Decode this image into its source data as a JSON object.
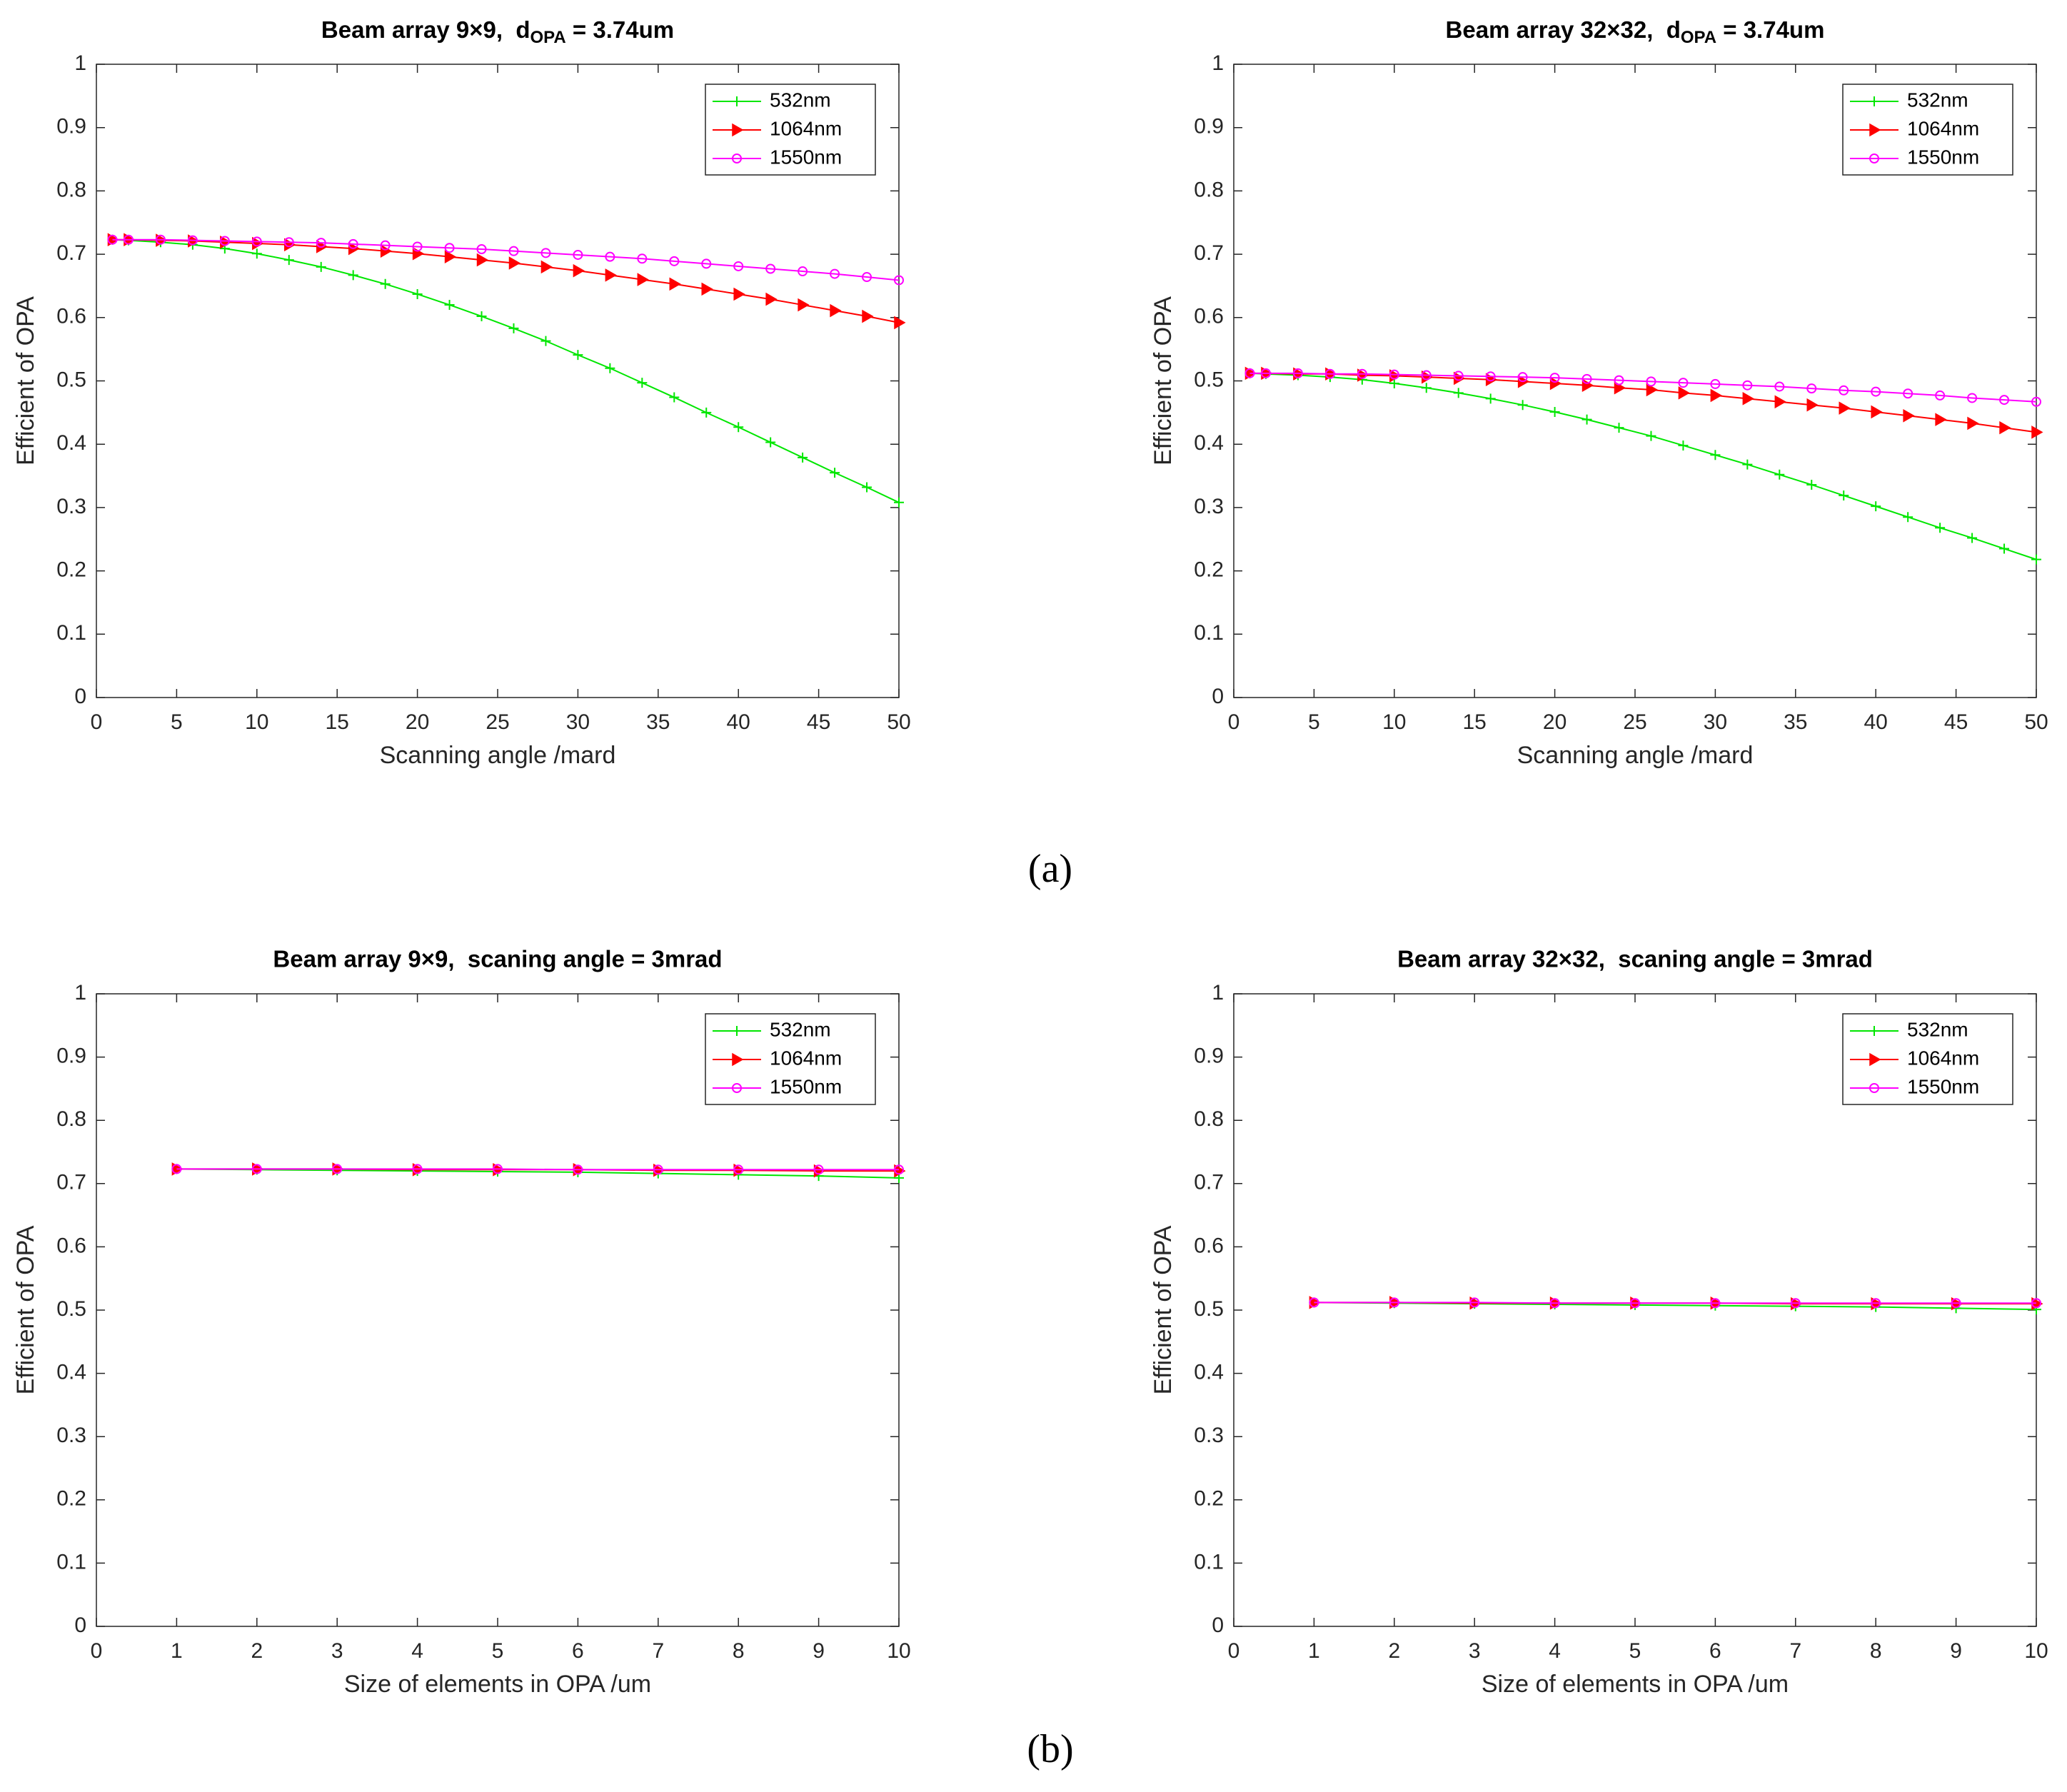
{
  "chart_data": [
    {
      "type": "line",
      "title": [
        "Beam array 9×9,  d",
        "OPA",
        " = 3.74um"
      ],
      "xlabel": "Scanning angle /mard",
      "ylabel": "Efficient of OPA",
      "xlim": [
        0,
        50
      ],
      "ylim": [
        0,
        1
      ],
      "xticks": [
        0,
        5,
        10,
        15,
        20,
        25,
        30,
        35,
        40,
        45,
        50
      ],
      "yticks": [
        0,
        0.1,
        0.2,
        0.3,
        0.4,
        0.5,
        0.6,
        0.7,
        0.8,
        0.9,
        1
      ],
      "legend": "upper right",
      "grid": false,
      "x": [
        1,
        2,
        4,
        6,
        8,
        10,
        12,
        14,
        16,
        18,
        20,
        22,
        24,
        26,
        28,
        30,
        32,
        34,
        36,
        38,
        40,
        42,
        44,
        46,
        48,
        50
      ],
      "series": [
        {
          "name": "532nm",
          "color": "#00e600",
          "marker": "+",
          "values": [
            0.723,
            0.722,
            0.719,
            0.715,
            0.709,
            0.701,
            0.691,
            0.68,
            0.667,
            0.653,
            0.637,
            0.62,
            0.602,
            0.583,
            0.563,
            0.541,
            0.52,
            0.497,
            0.474,
            0.45,
            0.427,
            0.403,
            0.379,
            0.355,
            0.332,
            0.308
          ]
        },
        {
          "name": "1064nm",
          "color": "#ff0000",
          "marker": ">",
          "values": [
            0.723,
            0.723,
            0.722,
            0.721,
            0.719,
            0.717,
            0.715,
            0.712,
            0.709,
            0.705,
            0.701,
            0.696,
            0.691,
            0.686,
            0.68,
            0.674,
            0.667,
            0.66,
            0.653,
            0.645,
            0.637,
            0.629,
            0.62,
            0.611,
            0.602,
            0.592
          ]
        },
        {
          "name": "1550nm",
          "color": "#ff00ff",
          "marker": "o",
          "values": [
            0.723,
            0.723,
            0.723,
            0.722,
            0.721,
            0.72,
            0.719,
            0.718,
            0.716,
            0.714,
            0.712,
            0.71,
            0.708,
            0.705,
            0.702,
            0.699,
            0.696,
            0.693,
            0.689,
            0.685,
            0.681,
            0.677,
            0.673,
            0.669,
            0.664,
            0.659
          ]
        }
      ]
    },
    {
      "type": "line",
      "title": [
        "Beam array 32×32,  d",
        "OPA",
        " = 3.74um"
      ],
      "xlabel": "Scanning angle /mard",
      "ylabel": "Efficient of OPA",
      "xlim": [
        0,
        50
      ],
      "ylim": [
        0,
        1
      ],
      "xticks": [
        0,
        5,
        10,
        15,
        20,
        25,
        30,
        35,
        40,
        45,
        50
      ],
      "yticks": [
        0,
        0.1,
        0.2,
        0.3,
        0.4,
        0.5,
        0.6,
        0.7,
        0.8,
        0.9,
        1
      ],
      "legend": "upper right",
      "grid": false,
      "x": [
        1,
        2,
        4,
        6,
        8,
        10,
        12,
        14,
        16,
        18,
        20,
        22,
        24,
        26,
        28,
        30,
        32,
        34,
        36,
        38,
        40,
        42,
        44,
        46,
        48,
        50
      ],
      "series": [
        {
          "name": "532nm",
          "color": "#00e600",
          "marker": "+",
          "values": [
            0.512,
            0.511,
            0.509,
            0.506,
            0.502,
            0.496,
            0.489,
            0.481,
            0.472,
            0.462,
            0.451,
            0.439,
            0.426,
            0.413,
            0.398,
            0.383,
            0.368,
            0.352,
            0.336,
            0.319,
            0.302,
            0.285,
            0.268,
            0.252,
            0.235,
            0.218
          ]
        },
        {
          "name": "1064nm",
          "color": "#ff0000",
          "marker": ">",
          "values": [
            0.512,
            0.512,
            0.511,
            0.511,
            0.509,
            0.508,
            0.506,
            0.504,
            0.502,
            0.499,
            0.496,
            0.493,
            0.489,
            0.486,
            0.481,
            0.477,
            0.472,
            0.467,
            0.462,
            0.457,
            0.451,
            0.445,
            0.439,
            0.433,
            0.426,
            0.419
          ]
        },
        {
          "name": "1550nm",
          "color": "#ff00ff",
          "marker": "o",
          "values": [
            0.512,
            0.512,
            0.512,
            0.511,
            0.511,
            0.51,
            0.509,
            0.508,
            0.507,
            0.506,
            0.505,
            0.503,
            0.501,
            0.499,
            0.497,
            0.495,
            0.493,
            0.491,
            0.488,
            0.485,
            0.483,
            0.48,
            0.477,
            0.473,
            0.47,
            0.467
          ]
        }
      ]
    },
    {
      "type": "line",
      "title": "Beam array 9×9,  scaning angle = 3mrad",
      "xlabel": "Size of elements in OPA /um",
      "ylabel": "Efficient of OPA",
      "xlim": [
        0,
        10
      ],
      "ylim": [
        0,
        1
      ],
      "xticks": [
        0,
        1,
        2,
        3,
        4,
        5,
        6,
        7,
        8,
        9,
        10
      ],
      "yticks": [
        0,
        0.1,
        0.2,
        0.3,
        0.4,
        0.5,
        0.6,
        0.7,
        0.8,
        0.9,
        1
      ],
      "legend": "upper right",
      "grid": false,
      "x": [
        1,
        2,
        3,
        4,
        5,
        6,
        7,
        8,
        9,
        10
      ],
      "series": [
        {
          "name": "532nm",
          "color": "#00e600",
          "marker": "+",
          "values": [
            0.723,
            0.722,
            0.721,
            0.72,
            0.719,
            0.718,
            0.716,
            0.714,
            0.712,
            0.709
          ]
        },
        {
          "name": "1064nm",
          "color": "#ff0000",
          "marker": ">",
          "values": [
            0.723,
            0.723,
            0.723,
            0.722,
            0.722,
            0.722,
            0.721,
            0.721,
            0.72,
            0.72
          ]
        },
        {
          "name": "1550nm",
          "color": "#ff00ff",
          "marker": "o",
          "values": [
            0.723,
            0.723,
            0.723,
            0.723,
            0.723,
            0.722,
            0.722,
            0.722,
            0.722,
            0.722
          ]
        }
      ]
    },
    {
      "type": "line",
      "title": "Beam array 32×32,  scaning angle = 3mrad",
      "xlabel": "Size of elements in OPA /um",
      "ylabel": "Efficient of OPA",
      "xlim": [
        0,
        10
      ],
      "ylim": [
        0,
        1
      ],
      "xticks": [
        0,
        1,
        2,
        3,
        4,
        5,
        6,
        7,
        8,
        9,
        10
      ],
      "yticks": [
        0,
        0.1,
        0.2,
        0.3,
        0.4,
        0.5,
        0.6,
        0.7,
        0.8,
        0.9,
        1
      ],
      "legend": "upper right",
      "grid": false,
      "x": [
        1,
        2,
        3,
        4,
        5,
        6,
        7,
        8,
        9,
        10
      ],
      "series": [
        {
          "name": "532nm",
          "color": "#00e600",
          "marker": "+",
          "values": [
            0.512,
            0.511,
            0.51,
            0.509,
            0.508,
            0.507,
            0.506,
            0.505,
            0.503,
            0.501
          ]
        },
        {
          "name": "1064nm",
          "color": "#ff0000",
          "marker": ">",
          "values": [
            0.512,
            0.512,
            0.511,
            0.511,
            0.511,
            0.511,
            0.51,
            0.51,
            0.51,
            0.51
          ]
        },
        {
          "name": "1550nm",
          "color": "#ff00ff",
          "marker": "o",
          "values": [
            0.512,
            0.512,
            0.512,
            0.511,
            0.511,
            0.511,
            0.511,
            0.511,
            0.511,
            0.511
          ]
        }
      ]
    }
  ],
  "captions": [
    "(a)",
    "(b)"
  ]
}
